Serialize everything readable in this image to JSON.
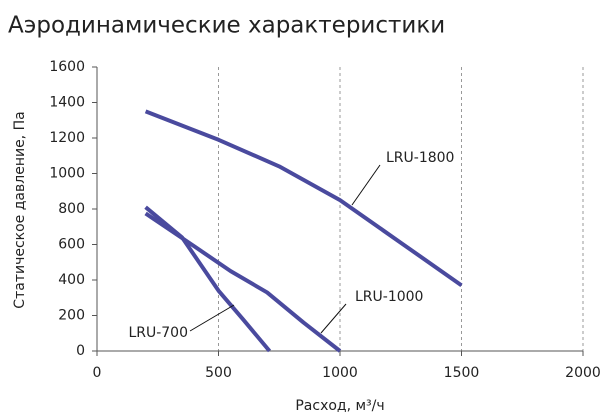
{
  "chart_data": {
    "type": "line",
    "title": "Аэродинамические характеристики",
    "x_label": "Расход, м³/ч",
    "y_label": "Статическое давление, Па",
    "xlim": [
      0,
      2000
    ],
    "xticks": [
      0,
      500,
      1000,
      1500,
      2000
    ],
    "ylim": [
      0,
      1600
    ],
    "yticks": [
      0,
      200,
      400,
      600,
      800,
      1000,
      1200,
      1400,
      1600
    ],
    "grid": "x",
    "series": [
      {
        "name": "LRU-1800",
        "color": "#4a4a9e",
        "x": [
          200,
          500,
          750,
          1000,
          1250,
          1500
        ],
        "values": [
          1350,
          1190,
          1040,
          850,
          610,
          370
        ]
      },
      {
        "name": "LRU-1000",
        "color": "#4a4a9e",
        "x": [
          200,
          400,
          550,
          700,
          850,
          1000
        ],
        "values": [
          775,
          590,
          450,
          330,
          160,
          0
        ]
      },
      {
        "name": "LRU-700",
        "color": "#4a4a9e",
        "x": [
          200,
          350,
          500,
          600,
          710
        ],
        "values": [
          810,
          640,
          340,
          180,
          0
        ]
      }
    ]
  }
}
